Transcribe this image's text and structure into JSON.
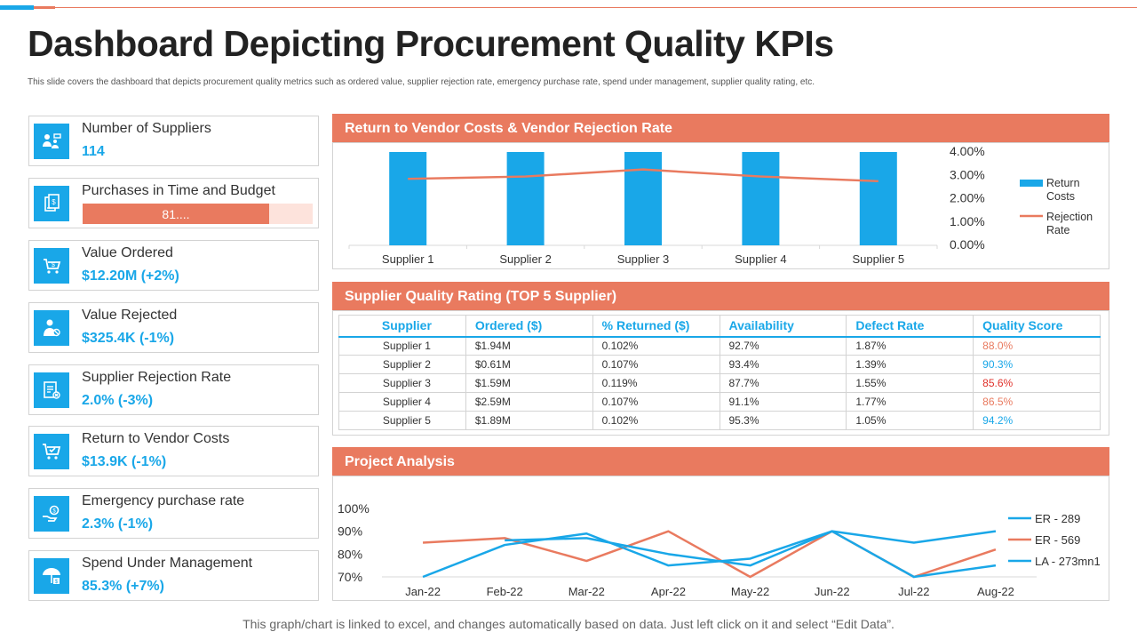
{
  "title": "Dashboard Depicting Procurement Quality KPIs",
  "subtitle": "This slide covers the dashboard that depicts procurement quality metrics such as ordered value, supplier rejection rate, emergency purchase rate, spend under management, supplier quality rating, etc.",
  "footer": "This graph/chart is linked to excel, and changes automatically based on data. Just left click on it and select “Edit Data”.",
  "colors": {
    "accent_blue": "#19a7e8",
    "accent_orange": "#e97a5f",
    "rating_red": "#e0312a"
  },
  "kpis": [
    {
      "label": "Number of Suppliers",
      "value": "114",
      "icon": "suppliers-icon"
    },
    {
      "label": "Purchases in Time and Budget",
      "bar_text": "81....",
      "progress": 0.81,
      "icon": "budget-icon"
    },
    {
      "label": "Value Ordered",
      "value": "$12.20M (+2%)",
      "icon": "cart-dollar-icon"
    },
    {
      "label": "Value Rejected",
      "value": "$325.4K (-1%)",
      "icon": "person-reject-icon"
    },
    {
      "label": "Supplier Rejection Rate",
      "value": "2.0% (-3%)",
      "icon": "document-reject-icon"
    },
    {
      "label": "Return to Vendor Costs",
      "value": "$13.9K (-1%)",
      "icon": "cart-check-icon"
    },
    {
      "label": "Emergency purchase rate",
      "value": "2.3% (-1%)",
      "icon": "hand-coin-icon"
    },
    {
      "label": "Spend Under Management",
      "value": "85.3% (+7%)",
      "icon": "umbrella-money-icon"
    }
  ],
  "panels": {
    "vendor": {
      "title": "Return to Vendor Costs & Vendor Rejection Rate"
    },
    "quality": {
      "title": "Supplier Quality Rating (TOP 5 Supplier)"
    },
    "project": {
      "title": "Project Analysis"
    }
  },
  "quality_table": {
    "headers": [
      "Supplier",
      "Ordered ($)",
      "% Returned ($)",
      "Availability",
      "Defect Rate",
      "Quality Score"
    ],
    "rows": [
      {
        "supplier": "Supplier 1",
        "ordered": "$1.94M",
        "returned": "0.102%",
        "availability": "92.7%",
        "defect": "1.87%",
        "score": "88.0%",
        "score_color": "#e97a5f"
      },
      {
        "supplier": "Supplier 2",
        "ordered": "$0.61M",
        "returned": "0.107%",
        "availability": "93.4%",
        "defect": "1.39%",
        "score": "90.3%",
        "score_color": "#19a7e8"
      },
      {
        "supplier": "Supplier 3",
        "ordered": "$1.59M",
        "returned": "0.119%",
        "availability": "87.7%",
        "defect": "1.55%",
        "score": "85.6%",
        "score_color": "#e0312a"
      },
      {
        "supplier": "Supplier 4",
        "ordered": "$2.59M",
        "returned": "0.107%",
        "availability": "91.1%",
        "defect": "1.77%",
        "score": "86.5%",
        "score_color": "#e97a5f"
      },
      {
        "supplier": "Supplier 5",
        "ordered": "$1.89M",
        "returned": "0.102%",
        "availability": "95.3%",
        "defect": "1.05%",
        "score": "94.2%",
        "score_color": "#19a7e8"
      }
    ]
  },
  "chart_data": [
    {
      "type": "bar",
      "categories": [
        "Supplier 1",
        "Supplier 2",
        "Supplier 3",
        "Supplier 4",
        "Supplier 5"
      ],
      "series": [
        {
          "name": "Return Costs",
          "kind": "bar",
          "color": "#19a7e8",
          "values": [
            1,
            1,
            1,
            1,
            1
          ]
        },
        {
          "name": "Rejection Rate",
          "kind": "line",
          "color": "#e97a5f",
          "values": [
            2.85,
            2.95,
            3.25,
            2.95,
            2.75
          ]
        }
      ],
      "y2_ticks": [
        "4.00%",
        "3.00%",
        "2.00%",
        "1.00%",
        "0.00%"
      ],
      "y2lim": [
        0,
        4
      ],
      "legend_position": "right"
    },
    {
      "type": "line",
      "categories": [
        "Jan-22",
        "Feb-22",
        "Mar-22",
        "Apr-22",
        "May-22",
        "Jun-22",
        "Jul-22",
        "Aug-22"
      ],
      "series": [
        {
          "name": "ER - 289",
          "color": "#19a7e8",
          "values": [
            70,
            84,
            89,
            75,
            78,
            90,
            85,
            90
          ]
        },
        {
          "name": "ER - 569",
          "color": "#e97a5f",
          "values": [
            85,
            87,
            77,
            90,
            70,
            90,
            70,
            82
          ]
        },
        {
          "name": "LA - 273mn1",
          "color": "#19a7e8",
          "values": [
            null,
            86,
            87,
            80,
            75,
            90,
            70,
            75
          ]
        }
      ],
      "y_ticks": [
        "100%",
        "90%",
        "80%",
        "70%"
      ],
      "ylim": [
        70,
        100
      ],
      "legend_position": "right"
    }
  ]
}
